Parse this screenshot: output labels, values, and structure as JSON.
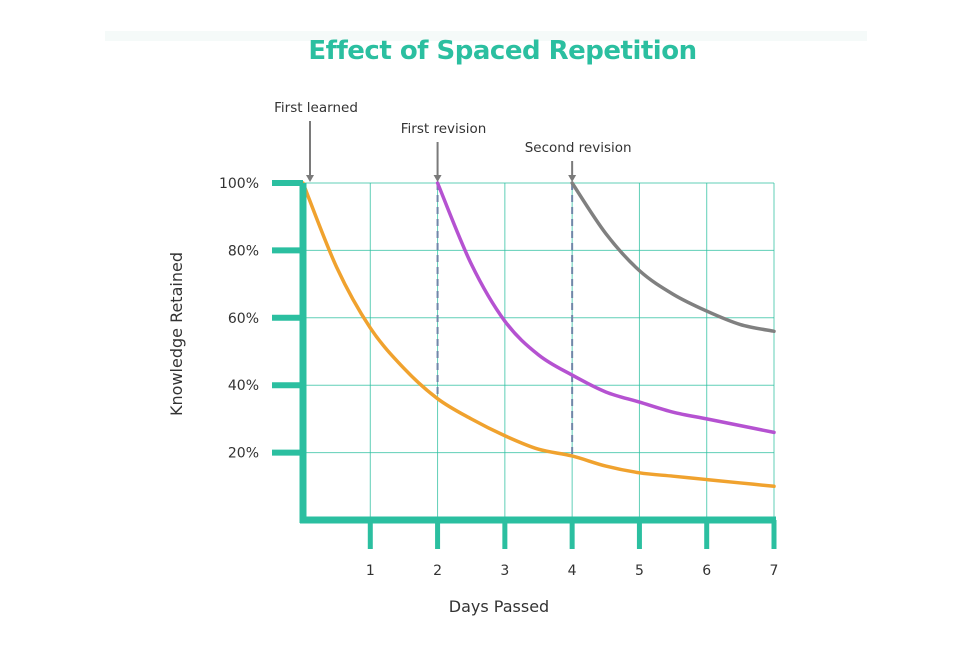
{
  "chart_data": {
    "type": "line",
    "title": "Effect of Spaced Repetition",
    "xlabel": "Days Passed",
    "ylabel": "Knowledge Retained",
    "xlim": [
      0,
      7
    ],
    "ylim": [
      0,
      100
    ],
    "x_ticks": [
      {
        "value": 1,
        "label": "1"
      },
      {
        "value": 2,
        "label": "2"
      },
      {
        "value": 3,
        "label": "3"
      },
      {
        "value": 4,
        "label": "4"
      },
      {
        "value": 5,
        "label": "5"
      },
      {
        "value": 6,
        "label": "6"
      },
      {
        "value": 7,
        "label": "7"
      }
    ],
    "y_ticks": [
      {
        "value": 20,
        "label": "20%"
      },
      {
        "value": 40,
        "label": "40%"
      },
      {
        "value": 60,
        "label": "60%"
      },
      {
        "value": 80,
        "label": "80%"
      },
      {
        "value": 100,
        "label": "100%"
      }
    ],
    "grid": true,
    "series": [
      {
        "color": "#f0a22e",
        "x": [
          0,
          0.5,
          1,
          1.5,
          2,
          2.5,
          3,
          3.5,
          4,
          4.5,
          5,
          5.5,
          6,
          6.5,
          7
        ],
        "y": [
          100,
          75,
          57,
          45,
          36,
          30,
          25,
          21,
          19,
          16,
          14,
          13,
          12,
          11,
          10
        ]
      },
      {
        "color": "#b552d1",
        "x": [
          2,
          2.5,
          3,
          3.5,
          4,
          4.5,
          5,
          5.5,
          6,
          6.5,
          7
        ],
        "y": [
          100,
          76,
          59,
          49,
          43,
          38,
          35,
          32,
          30,
          28,
          26
        ]
      },
      {
        "color": "#808080",
        "x": [
          4,
          4.5,
          5,
          5.5,
          6,
          6.5,
          7
        ],
        "y": [
          100,
          85,
          74,
          67,
          62,
          58,
          56
        ]
      }
    ],
    "revision_markers": [
      {
        "x": 2,
        "from": 36,
        "to": 100
      },
      {
        "x": 4,
        "from": 19,
        "to": 100
      }
    ],
    "annotations": [
      {
        "text": "First learned",
        "x": 0
      },
      {
        "text": "First revision",
        "x": 2
      },
      {
        "text": "Second revision",
        "x": 4
      }
    ],
    "colors": {
      "accent": "#2bbfa0",
      "grid": "#2bbfa0",
      "text": "#333333",
      "arrow": "#7a7a7a"
    }
  }
}
